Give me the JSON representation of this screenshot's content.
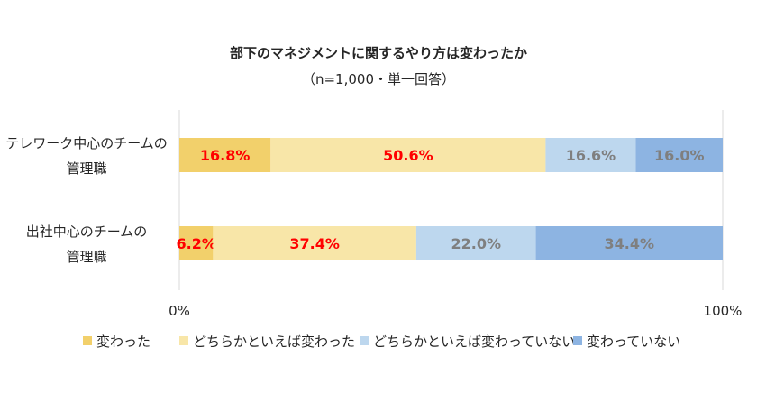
{
  "chart_data": {
    "type": "bar",
    "orientation": "horizontal",
    "stacked": "percent",
    "title": "部下のマネジメントに関するやり方は変わったか",
    "subtitle": "（n=1,000・単一回答）",
    "categories": [
      [
        "テレワーク中心のチームの",
        "管理職"
      ],
      [
        "出社中心のチームの",
        "管理職"
      ]
    ],
    "series": [
      {
        "name": "変わった",
        "color": "#F2D06B",
        "label_color": "#FF0000",
        "values": [
          16.8,
          6.2
        ],
        "labels": [
          "16.8%",
          "6.2%"
        ]
      },
      {
        "name": "どちらかといえば変わった",
        "color": "#F8E6A8",
        "label_color": "#FF0000",
        "values": [
          50.6,
          37.4
        ],
        "labels": [
          "50.6%",
          "37.4%"
        ]
      },
      {
        "name": "どちらかといえば変わっていない",
        "color": "#BDD7EE",
        "label_color": "#7F7F7F",
        "values": [
          16.6,
          22.0
        ],
        "labels": [
          "16.6%",
          "22.0%"
        ]
      },
      {
        "name": "変わっていない",
        "color": "#8DB4E2",
        "label_color": "#7F7F7F",
        "values": [
          16.0,
          34.4
        ],
        "labels": [
          "16.0%",
          "34.4%"
        ]
      }
    ],
    "xlim": [
      0,
      100
    ],
    "xticks": [
      "0%",
      "100%"
    ],
    "grid": false,
    "legend_position": "bottom"
  }
}
